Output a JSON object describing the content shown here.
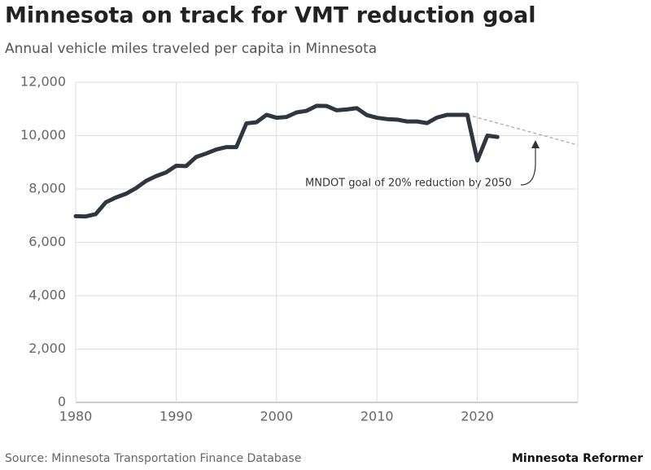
{
  "chart_data": {
    "type": "line",
    "title": "Minnesota on track for VMT reduction goal",
    "subtitle": "Annual vehicle miles traveled per capita in Minnesota",
    "annotation": "MNDOT goal of 20% reduction by 2050",
    "source": "Source: Minnesota Transportation Finance Database",
    "publisher": "Minnesota Reformer",
    "x": [
      1980,
      1981,
      1982,
      1983,
      1984,
      1985,
      1986,
      1987,
      1988,
      1989,
      1990,
      1991,
      1992,
      1993,
      1994,
      1995,
      1996,
      1997,
      1998,
      1999,
      2000,
      2001,
      2002,
      2003,
      2004,
      2005,
      2006,
      2007,
      2008,
      2009,
      2010,
      2011,
      2012,
      2013,
      2014,
      2015,
      2016,
      2017,
      2018,
      2019,
      2020,
      2021,
      2022
    ],
    "series": [
      {
        "color": "#2f3640",
        "values": [
          6980,
          6970,
          7060,
          7500,
          7680,
          7820,
          8030,
          8300,
          8480,
          8620,
          8870,
          8860,
          9200,
          9330,
          9480,
          9570,
          9570,
          10460,
          10500,
          10780,
          10670,
          10700,
          10870,
          10930,
          11120,
          11110,
          10950,
          10980,
          11030,
          10770,
          10670,
          10620,
          10600,
          10530,
          10530,
          10470,
          10680,
          10780,
          10780,
          10780,
          9070,
          10000,
          9950
        ]
      }
    ],
    "goal_line": {
      "color": "#aaaaaa",
      "x": [
        2019,
        2030
      ],
      "values": [
        10780,
        9650
      ]
    },
    "xlim": [
      1980,
      2030
    ],
    "xticks": [
      1980,
      1990,
      2000,
      2010,
      2020
    ],
    "ylim": [
      0,
      12000
    ],
    "yticks": [
      0,
      {
        "value": 2000,
        "label": "2,000"
      },
      {
        "value": 4000,
        "label": "4,000"
      },
      {
        "value": 6000,
        "label": "6,000"
      },
      {
        "value": 8000,
        "label": "8,000"
      },
      {
        "value": 10000,
        "label": "10,000"
      },
      {
        "value": 12000,
        "label": "12,000"
      }
    ],
    "grid": true
  }
}
